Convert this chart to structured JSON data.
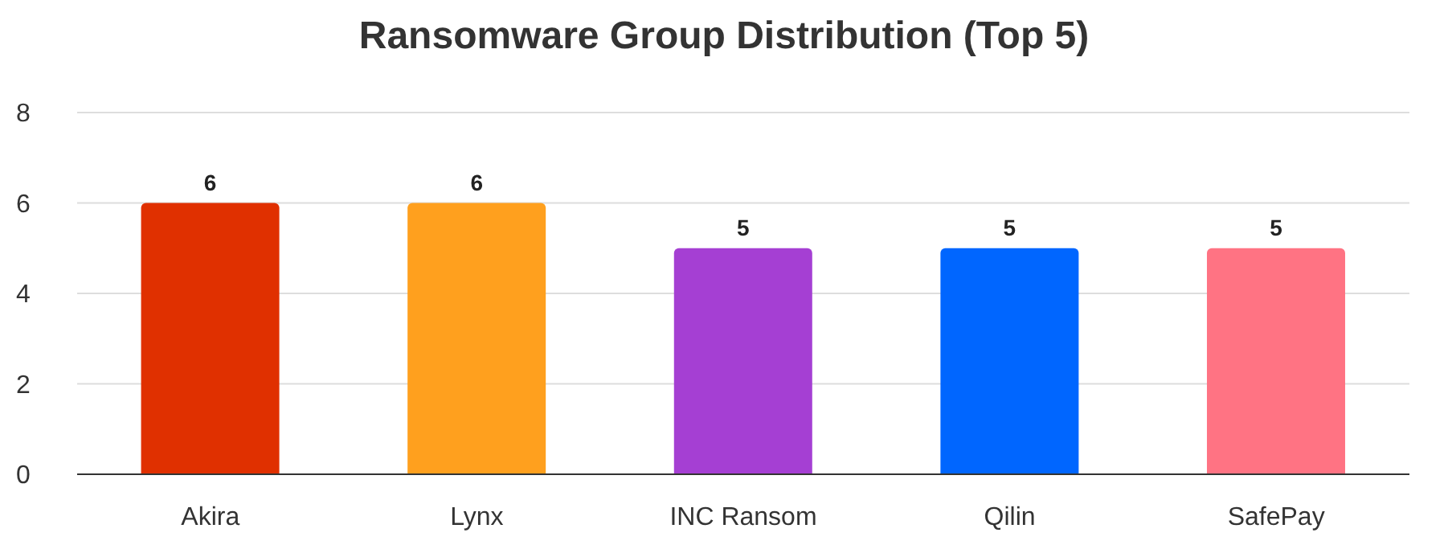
{
  "chart_data": {
    "type": "bar",
    "title": "Ransomware Group Distribution (Top 5)",
    "categories": [
      "Akira",
      "Lynx",
      "INC Ransom",
      "Qilin",
      "SafePay"
    ],
    "values": [
      6,
      6,
      5,
      5,
      5
    ],
    "colors": [
      "#e03000",
      "#ffa01e",
      "#a53fd3",
      "#0066ff",
      "#ff7383"
    ],
    "ylim": [
      0,
      8
    ],
    "yticks": [
      0,
      2,
      4,
      6,
      8
    ],
    "grid": "y",
    "data_labels": true
  }
}
